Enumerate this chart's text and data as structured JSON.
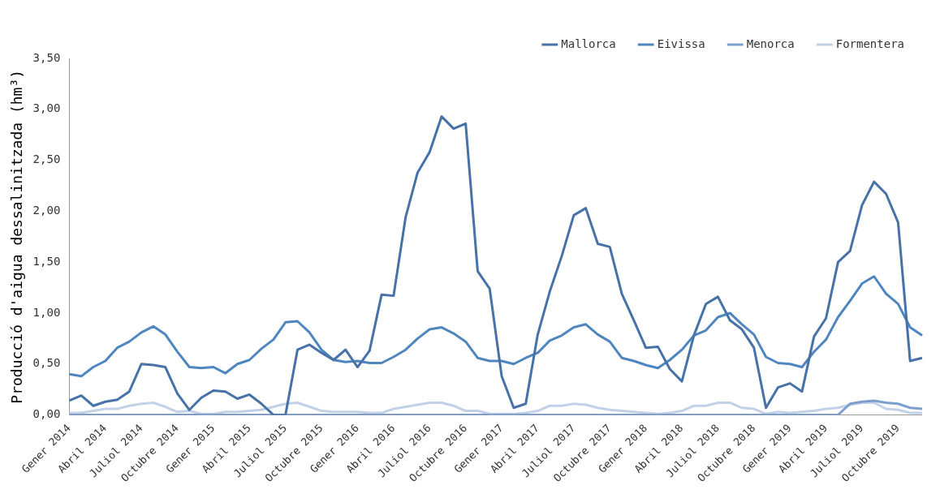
{
  "chart_data": {
    "type": "line",
    "ylabel": "Producció d'aigua dessalinitzada (hm³)",
    "categories": [
      "Gener 2014",
      null,
      null,
      "Abril 2014",
      null,
      null,
      "Juliol 2014",
      null,
      null,
      "Octubre 2014",
      null,
      null,
      "Gener 2015",
      null,
      null,
      "Abril 2015",
      null,
      null,
      "Juliol 2015",
      null,
      null,
      "Octubre 2015",
      null,
      null,
      "Gener 2016",
      null,
      null,
      "Abril 2016",
      null,
      null,
      "Juliol 2016",
      null,
      null,
      "Octubre 2016",
      null,
      null,
      "Gener 2017",
      null,
      null,
      "Abril 2017",
      null,
      null,
      "Juliol 2017",
      null,
      null,
      "Octubre 2017",
      null,
      null,
      "Gener 2018",
      null,
      null,
      "Abril 2018",
      null,
      null,
      "Juliol 2018",
      null,
      null,
      "Octubre 2018",
      null,
      null,
      "Gener 2019",
      null,
      null,
      "Abril 2019",
      null,
      null,
      "Juliol 2019",
      null,
      null,
      "Octubre 2019",
      null,
      null
    ],
    "series": [
      {
        "name": "Mallorca",
        "color": "#4672a8",
        "values": [
          0.14,
          0.19,
          0.09,
          0.13,
          0.15,
          0.23,
          0.5,
          0.49,
          0.47,
          0.21,
          0.05,
          0.17,
          0.24,
          0.23,
          0.16,
          0.2,
          0.11,
          0,
          0,
          0.64,
          0.69,
          0.61,
          0.54,
          0.64,
          0.47,
          0.63,
          1.18,
          1.17,
          1.94,
          2.38,
          2.58,
          2.93,
          2.81,
          2.86,
          1.41,
          1.24,
          0.38,
          0.07,
          0.11,
          0.79,
          1.21,
          1.56,
          1.96,
          2.03,
          1.68,
          1.65,
          1.19,
          0.93,
          0.66,
          0.67,
          0.45,
          0.33,
          0.78,
          1.09,
          1.16,
          0.93,
          0.84,
          0.66,
          0.07,
          0.27,
          0.31,
          0.23,
          0.77,
          0.95,
          1.5,
          1.61,
          2.06,
          2.29,
          2.17,
          1.89,
          0.53,
          0.56
        ]
      },
      {
        "name": "Eivissa",
        "color": "#4f86bf",
        "values": [
          0.4,
          0.38,
          0.47,
          0.53,
          0.66,
          0.72,
          0.81,
          0.87,
          0.79,
          0.62,
          0.47,
          0.46,
          0.47,
          0.41,
          0.5,
          0.54,
          0.65,
          0.74,
          0.91,
          0.92,
          0.81,
          0.64,
          0.54,
          0.52,
          0.53,
          0.51,
          0.51,
          0.57,
          0.64,
          0.75,
          0.84,
          0.86,
          0.8,
          0.72,
          0.56,
          0.53,
          0.53,
          0.5,
          0.56,
          0.61,
          0.73,
          0.78,
          0.86,
          0.89,
          0.79,
          0.72,
          0.56,
          0.53,
          0.49,
          0.46,
          0.54,
          0.64,
          0.78,
          0.83,
          0.96,
          1.0,
          0.89,
          0.79,
          0.57,
          0.51,
          0.5,
          0.47,
          0.62,
          0.74,
          0.96,
          1.12,
          1.29,
          1.36,
          1.19,
          1.09,
          0.86,
          0.78
        ]
      },
      {
        "name": "Menorca",
        "color": "#7c9fcf",
        "values": [
          0,
          0,
          0,
          0,
          0,
          0,
          0,
          0,
          0,
          0,
          0,
          0,
          0,
          0,
          0,
          0,
          0,
          0,
          0,
          0,
          0,
          0,
          0,
          0,
          0,
          0,
          0,
          0,
          0,
          0,
          0,
          0,
          0,
          0,
          0,
          0,
          0,
          0,
          0,
          0,
          0,
          0,
          0,
          0,
          0,
          0,
          0,
          0,
          0,
          0,
          0,
          0,
          0,
          0,
          0,
          0,
          0,
          0,
          0,
          0,
          0,
          0,
          0,
          0,
          0,
          0.11,
          0.13,
          0.14,
          0.12,
          0.11,
          0.07,
          0.06
        ]
      },
      {
        "name": "Formentera",
        "color": "#c3d1e8",
        "values": [
          0.02,
          0.02,
          0.04,
          0.06,
          0.06,
          0.09,
          0.11,
          0.12,
          0.08,
          0.03,
          0.04,
          0.01,
          0.01,
          0.03,
          0.03,
          0.04,
          0.05,
          0.08,
          0.11,
          0.12,
          0.08,
          0.04,
          0.03,
          0.03,
          0.03,
          0.02,
          0.02,
          0.06,
          0.08,
          0.1,
          0.12,
          0.12,
          0.09,
          0.04,
          0.04,
          0.01,
          0.01,
          0.01,
          0.02,
          0.04,
          0.09,
          0.09,
          0.11,
          0.1,
          0.07,
          0.05,
          0.04,
          0.03,
          0.02,
          0.01,
          0.02,
          0.04,
          0.09,
          0.09,
          0.12,
          0.12,
          0.07,
          0.06,
          0.01,
          0.03,
          0.02,
          0.03,
          0.04,
          0.06,
          0.07,
          0.1,
          0.12,
          0.12,
          0.06,
          0.05,
          0.02,
          0.02
        ]
      }
    ],
    "ylim": [
      0,
      3.5
    ],
    "yticks": [
      {
        "value": 0,
        "label": "0,00"
      },
      {
        "value": 0.5,
        "label": "0,50"
      },
      {
        "value": 1,
        "label": "1,00"
      },
      {
        "value": 1.5,
        "label": "1,50"
      },
      {
        "value": 2,
        "label": "2,00"
      },
      {
        "value": 2.5,
        "label": "2,50"
      },
      {
        "value": 3,
        "label": "3,00"
      },
      {
        "value": 3.5,
        "label": "3,50"
      }
    ],
    "grid": false,
    "legend": "top right",
    "marker": "none",
    "line_style": "solid"
  }
}
